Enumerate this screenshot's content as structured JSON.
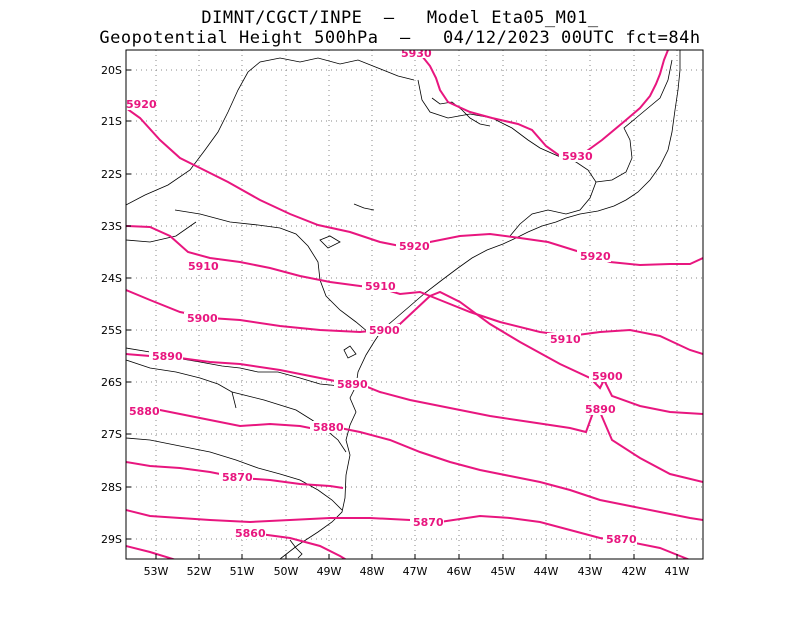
{
  "title_line1": "DIMNT/CGCT/INPE  –   Model Eta05_M01_",
  "title_line2": "Geopotential Height 500hPa  –   04/12/2023 00UTC fct=84h",
  "colors": {
    "contour": "#e8167f",
    "coast": "#000000",
    "grid": "#888888"
  },
  "axes": {
    "lon_ticks": [
      "53W",
      "52W",
      "51W",
      "50W",
      "49W",
      "48W",
      "47W",
      "46W",
      "45W",
      "44W",
      "43W",
      "42W",
      "41W"
    ],
    "lat_ticks": [
      "20S",
      "21S",
      "22S",
      "23S",
      "24S",
      "25S",
      "26S",
      "27S",
      "28S",
      "29S"
    ]
  },
  "contours": [
    {
      "value": 5930,
      "labels": [
        "5930",
        "5930"
      ]
    },
    {
      "value": 5920,
      "labels": [
        "5920",
        "5920",
        "5920"
      ]
    },
    {
      "value": 5910,
      "labels": [
        "5910",
        "5910",
        "5910"
      ]
    },
    {
      "value": 5900,
      "labels": [
        "5900",
        "5900",
        "5900"
      ]
    },
    {
      "value": 5890,
      "labels": [
        "5890",
        "5890",
        "5890"
      ]
    },
    {
      "value": 5880,
      "labels": [
        "5880",
        "5880"
      ]
    },
    {
      "value": 5870,
      "labels": [
        "5870",
        "5870",
        "5870"
      ]
    },
    {
      "value": 5860,
      "labels": [
        "5860"
      ]
    }
  ]
}
